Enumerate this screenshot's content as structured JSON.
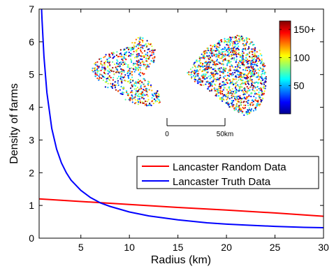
{
  "chart_data": {
    "type": "line",
    "title": "",
    "xlabel": "Radius (km)",
    "ylabel": "Density of farms",
    "xlim": [
      0.7,
      30
    ],
    "ylim": [
      0,
      7
    ],
    "xticks": [
      5,
      10,
      15,
      20,
      25,
      30
    ],
    "yticks": [
      0,
      1,
      2,
      3,
      4,
      5,
      6,
      7
    ],
    "grid": false,
    "legend_position": "lower-right",
    "series": [
      {
        "name": "Lancaster Random Data",
        "color": "#ff0000",
        "x": [
          0.7,
          5,
          10,
          15,
          20,
          25,
          30
        ],
        "y": [
          1.2,
          1.12,
          1.03,
          0.94,
          0.86,
          0.77,
          0.67
        ]
      },
      {
        "name": "Lancaster Truth Data",
        "color": "#0000ff",
        "x": [
          0.95,
          1.0,
          1.2,
          1.5,
          2,
          2.5,
          3,
          3.5,
          4,
          5,
          6,
          7,
          8,
          10,
          12,
          15,
          18,
          20,
          22,
          25,
          28,
          30
        ],
        "y": [
          7.0,
          6.65,
          5.55,
          4.45,
          3.35,
          2.72,
          2.3,
          2.0,
          1.77,
          1.46,
          1.24,
          1.08,
          0.97,
          0.8,
          0.68,
          0.56,
          0.47,
          0.43,
          0.4,
          0.36,
          0.33,
          0.32
        ]
      }
    ],
    "inset": {
      "scale_bar_labels": [
        "0",
        "50km"
      ],
      "colorbar_ticks": [
        "150+",
        "100",
        "50"
      ],
      "colorbar_values": [
        150,
        100,
        50
      ],
      "colorbar_range": [
        0,
        165
      ]
    }
  }
}
